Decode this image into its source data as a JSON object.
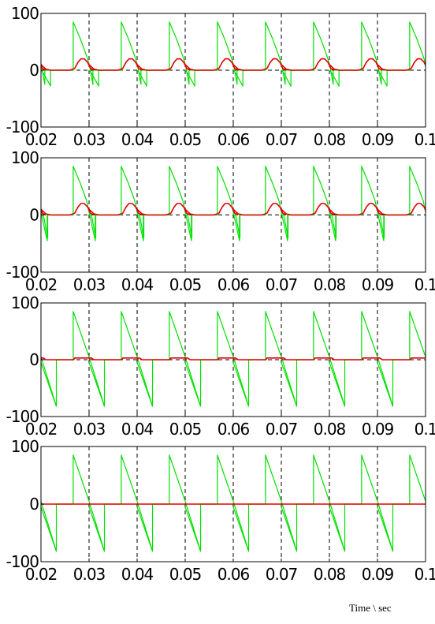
{
  "colors": {
    "background": "#ffffff",
    "axes": "#000000",
    "series_green": "#00e000",
    "series_red": "#e00000",
    "grid": "#000000"
  },
  "xlabel": "Time \\ sec",
  "chart_data": [
    {
      "type": "line",
      "xlim": [
        0.02,
        0.1
      ],
      "ylim": [
        -100,
        100
      ],
      "xticks": [
        "0.02",
        "0.03",
        "0.04",
        "0.05",
        "0.06",
        "0.07",
        "0.08",
        "0.09",
        "0.1"
      ],
      "yticks": [
        "100",
        "0",
        "-100"
      ],
      "vertical_dashed_grid": [
        0.03,
        0.04,
        0.05,
        0.06,
        0.07,
        0.08,
        0.09
      ],
      "zero_dashed_line": true,
      "period": 0.01,
      "series": [
        {
          "color": "green",
          "x": [
            0.02,
            0.0205,
            0.022,
            0.022,
            0.026,
            0.0267,
            0.0267,
            0.0282,
            0.0295,
            0.0301,
            0.0308,
            0.0308,
            0.0312,
            0.0312,
            0.0367
          ],
          "y": [
            0,
            -5,
            -28,
            0,
            0,
            0,
            85,
            55,
            25,
            8,
            -25,
            0,
            0,
            0,
            0
          ]
        },
        {
          "color": "red",
          "x": [
            0.02,
            0.0205,
            0.021,
            0.022,
            0.026,
            0.027,
            0.0277,
            0.0283,
            0.029,
            0.0297,
            0.0303,
            0.031
          ],
          "y": [
            10,
            6,
            2,
            0,
            0,
            3,
            14,
            20,
            20,
            14,
            3,
            0
          ]
        }
      ]
    },
    {
      "type": "line",
      "xlim": [
        0.02,
        0.1
      ],
      "ylim": [
        -100,
        100
      ],
      "xticks": [
        "0.02",
        "0.03",
        "0.04",
        "0.05",
        "0.06",
        "0.07",
        "0.08",
        "0.09",
        "0.1"
      ],
      "yticks": [
        "100",
        "0",
        "-100"
      ],
      "vertical_dashed_grid": [
        0.03,
        0.04,
        0.05,
        0.06,
        0.07,
        0.08,
        0.09
      ],
      "zero_dashed_line": true,
      "period": 0.01,
      "series": [
        {
          "color": "green",
          "x": [
            0.02,
            0.0205,
            0.0214,
            0.0214,
            0.026,
            0.0267,
            0.0267,
            0.0282,
            0.0295,
            0.03,
            0.0313,
            0.0313,
            0.0367
          ],
          "y": [
            0,
            0,
            -40,
            0,
            0,
            0,
            85,
            55,
            25,
            5,
            -45,
            0,
            0
          ]
        },
        {
          "color": "red",
          "x": [
            0.02,
            0.0205,
            0.021,
            0.022,
            0.026,
            0.027,
            0.0277,
            0.0283,
            0.029,
            0.0297,
            0.0303,
            0.031
          ],
          "y": [
            10,
            6,
            2,
            0,
            0,
            3,
            14,
            20,
            20,
            14,
            3,
            0
          ]
        }
      ]
    },
    {
      "type": "line",
      "xlim": [
        0.02,
        0.1
      ],
      "ylim": [
        -100,
        100
      ],
      "xticks": [
        "0.02",
        "0.03",
        "0.04",
        "0.05",
        "0.06",
        "0.07",
        "0.08",
        "0.09",
        "0.1"
      ],
      "yticks": [
        "100",
        "0",
        "-100"
      ],
      "vertical_dashed_grid": [
        0.03,
        0.04,
        0.05,
        0.06,
        0.07,
        0.08,
        0.09
      ],
      "zero_dashed_line": true,
      "period": 0.01,
      "series": [
        {
          "color": "green",
          "x": [
            0.02,
            0.0232,
            0.0232,
            0.026,
            0.0267,
            0.0267,
            0.03,
            0.0332
          ],
          "y": [
            -5,
            -82,
            0,
            0,
            0,
            85,
            5,
            -82
          ]
        },
        {
          "color": "red",
          "x": [
            0.02,
            0.0205,
            0.021,
            0.0215,
            0.0268,
            0.027,
            0.0275,
            0.0295,
            0.03,
            0.0302
          ],
          "y": [
            3,
            3,
            0,
            0,
            0,
            3,
            3,
            3,
            3,
            0
          ]
        }
      ]
    },
    {
      "type": "line",
      "xlim": [
        0.02,
        0.1
      ],
      "ylim": [
        -100,
        100
      ],
      "xticks": [
        "0.02",
        "0.03",
        "0.04",
        "0.05",
        "0.06",
        "0.07",
        "0.08",
        "0.09",
        "0.1"
      ],
      "yticks": [
        "100",
        "0",
        "-100"
      ],
      "vertical_dashed_grid": [
        0.03,
        0.04,
        0.05,
        0.06,
        0.07,
        0.08,
        0.09
      ],
      "zero_dashed_line": false,
      "period": 0.01,
      "series": [
        {
          "color": "green",
          "x": [
            0.02,
            0.0232,
            0.0232,
            0.026,
            0.0267,
            0.0267,
            0.03,
            0.0332
          ],
          "y": [
            -5,
            -82,
            0,
            0,
            0,
            85,
            5,
            -82
          ]
        },
        {
          "color": "red",
          "x": [
            0.02,
            0.03
          ],
          "y": [
            0,
            0
          ]
        }
      ]
    }
  ]
}
